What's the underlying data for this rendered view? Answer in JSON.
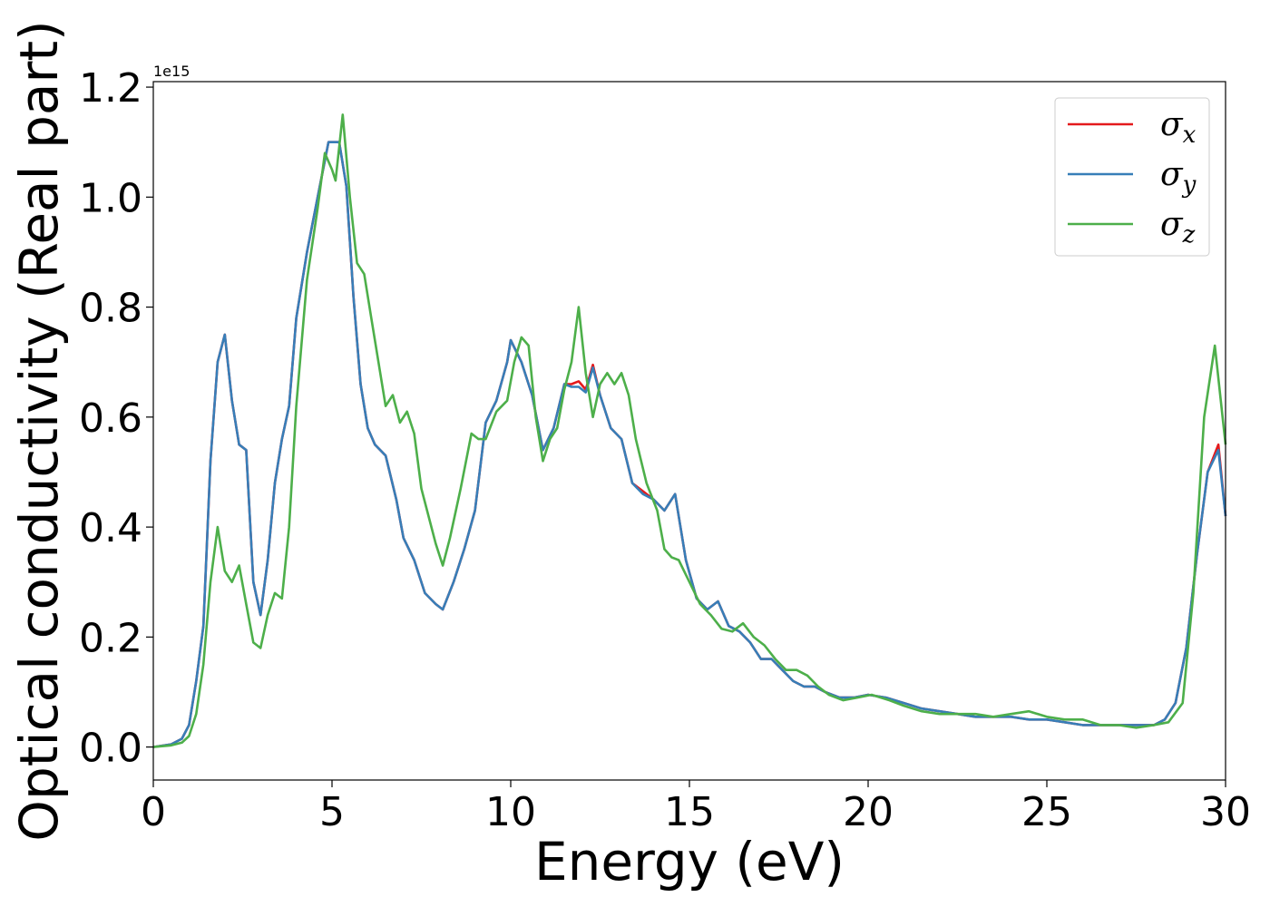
{
  "chart_data": {
    "type": "line",
    "xlabel": "Energy (eV)",
    "ylabel": "Optical conductivity (Real part)",
    "y_offset_label": "1e15",
    "xlim": [
      0,
      30
    ],
    "ylim": [
      -0.06,
      1.21
    ],
    "xticks": [
      0,
      5,
      10,
      15,
      20,
      25,
      30
    ],
    "yticks": [
      0.0,
      0.2,
      0.4,
      0.6,
      0.8,
      1.0,
      1.2
    ],
    "xtick_labels": [
      "0",
      "5",
      "10",
      "15",
      "20",
      "25",
      "30"
    ],
    "ytick_labels": [
      "0.0",
      "0.2",
      "0.4",
      "0.6",
      "0.8",
      "1.0",
      "1.2"
    ],
    "grid": false,
    "legend_position": "top-right",
    "series": [
      {
        "name": "x",
        "color": "#e41a1c",
        "x": [
          0,
          0.5,
          0.8,
          1.0,
          1.2,
          1.4,
          1.6,
          1.8,
          2.0,
          2.2,
          2.4,
          2.6,
          2.8,
          3.0,
          3.2,
          3.4,
          3.6,
          3.8,
          4.0,
          4.3,
          4.6,
          4.9,
          5.0,
          5.2,
          5.4,
          5.6,
          5.8,
          6.0,
          6.2,
          6.5,
          6.8,
          7.0,
          7.3,
          7.6,
          7.9,
          8.1,
          8.4,
          8.7,
          9.0,
          9.3,
          9.6,
          9.9,
          10.0,
          10.3,
          10.6,
          10.9,
          11.2,
          11.5,
          11.7,
          11.9,
          12.1,
          12.3,
          12.5,
          12.8,
          13.1,
          13.4,
          13.7,
          14.0,
          14.3,
          14.6,
          14.9,
          15.2,
          15.5,
          15.8,
          16.1,
          16.4,
          16.7,
          17.0,
          17.3,
          17.6,
          17.9,
          18.2,
          18.5,
          18.8,
          19.2,
          19.6,
          20.0,
          20.5,
          21.0,
          21.5,
          22.0,
          22.5,
          23.0,
          23.5,
          24.0,
          24.5,
          25.0,
          25.5,
          26.0,
          26.5,
          27.0,
          27.5,
          28.0,
          28.3,
          28.6,
          28.9,
          29.2,
          29.5,
          29.8,
          30.0
        ],
        "values": [
          0.0,
          0.005,
          0.015,
          0.04,
          0.12,
          0.22,
          0.52,
          0.7,
          0.75,
          0.63,
          0.55,
          0.54,
          0.3,
          0.24,
          0.34,
          0.48,
          0.56,
          0.62,
          0.78,
          0.9,
          1.0,
          1.1,
          1.1,
          1.1,
          1.02,
          0.82,
          0.66,
          0.58,
          0.55,
          0.53,
          0.45,
          0.38,
          0.34,
          0.28,
          0.26,
          0.25,
          0.3,
          0.36,
          0.43,
          0.59,
          0.63,
          0.7,
          0.74,
          0.7,
          0.64,
          0.54,
          0.58,
          0.66,
          0.66,
          0.665,
          0.65,
          0.695,
          0.64,
          0.58,
          0.56,
          0.48,
          0.465,
          0.45,
          0.43,
          0.46,
          0.34,
          0.27,
          0.25,
          0.265,
          0.22,
          0.21,
          0.19,
          0.16,
          0.16,
          0.14,
          0.12,
          0.11,
          0.11,
          0.1,
          0.09,
          0.09,
          0.095,
          0.09,
          0.08,
          0.07,
          0.065,
          0.06,
          0.055,
          0.055,
          0.055,
          0.05,
          0.05,
          0.045,
          0.04,
          0.04,
          0.04,
          0.04,
          0.04,
          0.05,
          0.08,
          0.18,
          0.35,
          0.5,
          0.55,
          0.42
        ]
      },
      {
        "name": "y",
        "color": "#377eb8",
        "x": [
          0,
          0.5,
          0.8,
          1.0,
          1.2,
          1.4,
          1.6,
          1.8,
          2.0,
          2.2,
          2.4,
          2.6,
          2.8,
          3.0,
          3.2,
          3.4,
          3.6,
          3.8,
          4.0,
          4.3,
          4.6,
          4.9,
          5.0,
          5.2,
          5.4,
          5.6,
          5.8,
          6.0,
          6.2,
          6.5,
          6.8,
          7.0,
          7.3,
          7.6,
          7.9,
          8.1,
          8.4,
          8.7,
          9.0,
          9.3,
          9.6,
          9.9,
          10.0,
          10.3,
          10.6,
          10.9,
          11.2,
          11.5,
          11.7,
          11.9,
          12.1,
          12.3,
          12.5,
          12.8,
          13.1,
          13.4,
          13.7,
          14.0,
          14.3,
          14.6,
          14.9,
          15.2,
          15.5,
          15.8,
          16.1,
          16.4,
          16.7,
          17.0,
          17.3,
          17.6,
          17.9,
          18.2,
          18.5,
          18.8,
          19.2,
          19.6,
          20.0,
          20.5,
          21.0,
          21.5,
          22.0,
          22.5,
          23.0,
          23.5,
          24.0,
          24.5,
          25.0,
          25.5,
          26.0,
          26.5,
          27.0,
          27.5,
          28.0,
          28.3,
          28.6,
          28.9,
          29.2,
          29.5,
          29.8,
          30.0
        ],
        "values": [
          0.0,
          0.005,
          0.015,
          0.04,
          0.12,
          0.22,
          0.52,
          0.7,
          0.75,
          0.63,
          0.55,
          0.54,
          0.3,
          0.24,
          0.34,
          0.48,
          0.56,
          0.62,
          0.78,
          0.9,
          1.0,
          1.1,
          1.1,
          1.1,
          1.02,
          0.82,
          0.66,
          0.58,
          0.55,
          0.53,
          0.45,
          0.38,
          0.34,
          0.28,
          0.26,
          0.25,
          0.3,
          0.36,
          0.43,
          0.59,
          0.63,
          0.7,
          0.74,
          0.7,
          0.64,
          0.54,
          0.58,
          0.66,
          0.655,
          0.655,
          0.645,
          0.69,
          0.64,
          0.58,
          0.56,
          0.48,
          0.46,
          0.45,
          0.43,
          0.46,
          0.34,
          0.27,
          0.25,
          0.265,
          0.22,
          0.21,
          0.19,
          0.16,
          0.16,
          0.14,
          0.12,
          0.11,
          0.11,
          0.1,
          0.09,
          0.09,
          0.095,
          0.09,
          0.08,
          0.07,
          0.065,
          0.06,
          0.055,
          0.055,
          0.055,
          0.05,
          0.05,
          0.045,
          0.04,
          0.04,
          0.04,
          0.04,
          0.04,
          0.05,
          0.08,
          0.18,
          0.35,
          0.5,
          0.54,
          0.42
        ]
      },
      {
        "name": "z",
        "color": "#4daf4a",
        "x": [
          0,
          0.5,
          0.8,
          1.0,
          1.2,
          1.4,
          1.6,
          1.8,
          2.0,
          2.2,
          2.4,
          2.6,
          2.8,
          3.0,
          3.2,
          3.4,
          3.6,
          3.8,
          4.0,
          4.3,
          4.6,
          4.8,
          5.0,
          5.1,
          5.3,
          5.5,
          5.7,
          5.9,
          6.1,
          6.3,
          6.5,
          6.7,
          6.9,
          7.1,
          7.3,
          7.5,
          7.7,
          7.9,
          8.1,
          8.3,
          8.6,
          8.9,
          9.1,
          9.3,
          9.6,
          9.9,
          10.1,
          10.3,
          10.5,
          10.7,
          10.9,
          11.1,
          11.3,
          11.5,
          11.7,
          11.9,
          12.1,
          12.3,
          12.5,
          12.7,
          12.9,
          13.1,
          13.3,
          13.5,
          13.8,
          14.1,
          14.3,
          14.5,
          14.7,
          15.0,
          15.3,
          15.6,
          15.9,
          16.2,
          16.5,
          16.8,
          17.1,
          17.4,
          17.7,
          18.0,
          18.3,
          18.6,
          18.9,
          19.3,
          19.7,
          20.1,
          20.6,
          21.0,
          21.5,
          22.0,
          22.5,
          23.0,
          23.5,
          24.0,
          24.5,
          25.0,
          25.5,
          26.0,
          26.5,
          27.0,
          27.5,
          28.0,
          28.4,
          28.8,
          29.1,
          29.4,
          29.7,
          30.0
        ],
        "values": [
          0.0,
          0.003,
          0.008,
          0.02,
          0.06,
          0.15,
          0.3,
          0.4,
          0.32,
          0.3,
          0.33,
          0.26,
          0.19,
          0.18,
          0.24,
          0.28,
          0.27,
          0.4,
          0.62,
          0.85,
          0.98,
          1.08,
          1.05,
          1.03,
          1.15,
          1.0,
          0.88,
          0.86,
          0.78,
          0.7,
          0.62,
          0.64,
          0.59,
          0.61,
          0.57,
          0.47,
          0.42,
          0.37,
          0.33,
          0.38,
          0.47,
          0.57,
          0.56,
          0.56,
          0.61,
          0.63,
          0.7,
          0.745,
          0.73,
          0.6,
          0.52,
          0.56,
          0.58,
          0.65,
          0.7,
          0.8,
          0.68,
          0.6,
          0.66,
          0.68,
          0.66,
          0.68,
          0.64,
          0.56,
          0.48,
          0.43,
          0.36,
          0.345,
          0.34,
          0.3,
          0.26,
          0.24,
          0.215,
          0.21,
          0.225,
          0.2,
          0.185,
          0.16,
          0.14,
          0.14,
          0.13,
          0.11,
          0.095,
          0.085,
          0.09,
          0.095,
          0.085,
          0.075,
          0.065,
          0.06,
          0.06,
          0.06,
          0.055,
          0.06,
          0.065,
          0.055,
          0.05,
          0.05,
          0.04,
          0.04,
          0.035,
          0.04,
          0.045,
          0.08,
          0.28,
          0.6,
          0.73,
          0.55
        ]
      }
    ]
  }
}
